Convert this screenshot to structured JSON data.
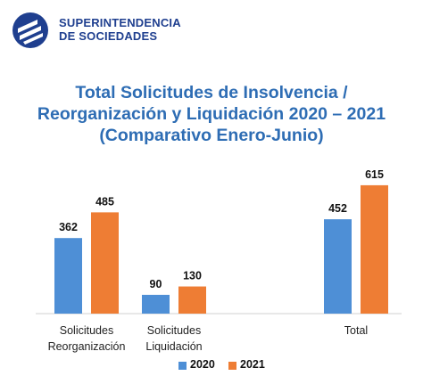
{
  "brand": {
    "line1": "SUPERINTENDENCIA",
    "line2": "DE SOCIEDADES",
    "logo_icon": "superintendencia-seal-icon",
    "color": "#1f3f8f"
  },
  "title_lines": [
    "Total Solicitudes de Insolvencia /",
    "Reorganización y Liquidación 2020 – 2021",
    "(Comparativo Enero-Junio)"
  ],
  "chart_data": {
    "type": "bar",
    "title": "Total Solicitudes de Insolvencia / Reorganización y Liquidación 2020 – 2021 (Comparativo Enero-Junio)",
    "categories": [
      [
        "Solicitudes",
        "Reorganización"
      ],
      [
        "Solicitudes",
        "Liquidación"
      ],
      [
        "",
        "Total"
      ]
    ],
    "series": [
      {
        "name": "2020",
        "values": [
          362,
          90,
          452
        ],
        "color": "#4e8fd6"
      },
      {
        "name": "2021",
        "values": [
          485,
          130,
          615
        ],
        "color": "#ee7d34"
      }
    ],
    "ylim": [
      0,
      700
    ],
    "grid": false,
    "legend": "bottom",
    "data_labels": true
  }
}
